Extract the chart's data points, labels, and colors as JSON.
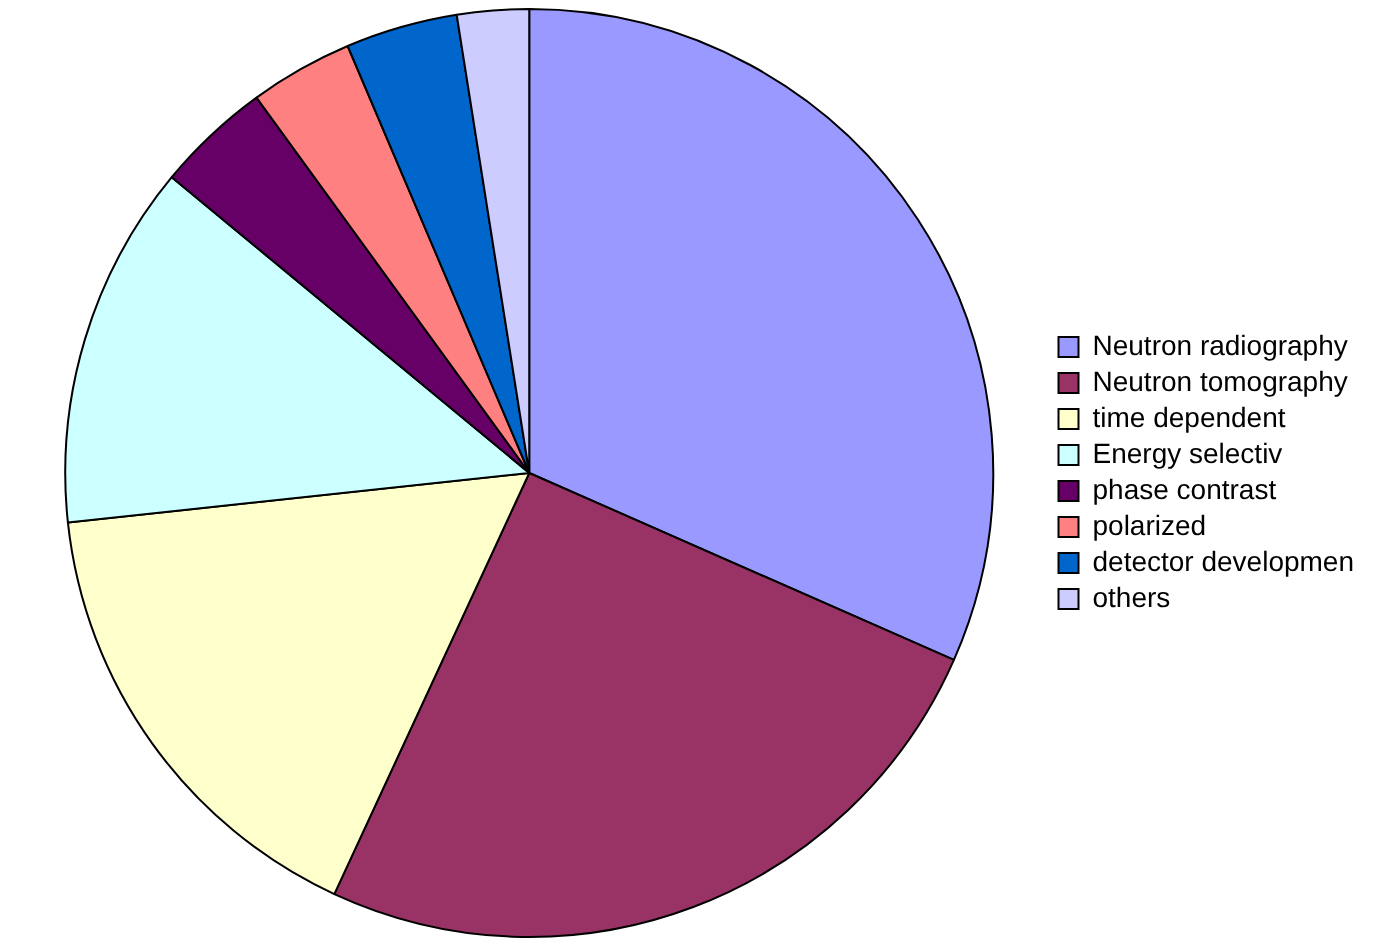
{
  "chart_data": {
    "type": "pie",
    "categories": [
      "Neutron radiography",
      "Neutron tomography",
      "time dependent",
      "Energy selectiv",
      "phase contrast",
      "polarized",
      "detector developmen",
      "others"
    ],
    "values": [
      31.6,
      25.3,
      16.4,
      12.7,
      4.0,
      3.6,
      3.9,
      2.5
    ],
    "colors": [
      "#9999ff",
      "#993366",
      "#ffffcc",
      "#ccffff",
      "#660066",
      "#ff8080",
      "#0066cc",
      "#ccccff"
    ],
    "legend": "right"
  }
}
